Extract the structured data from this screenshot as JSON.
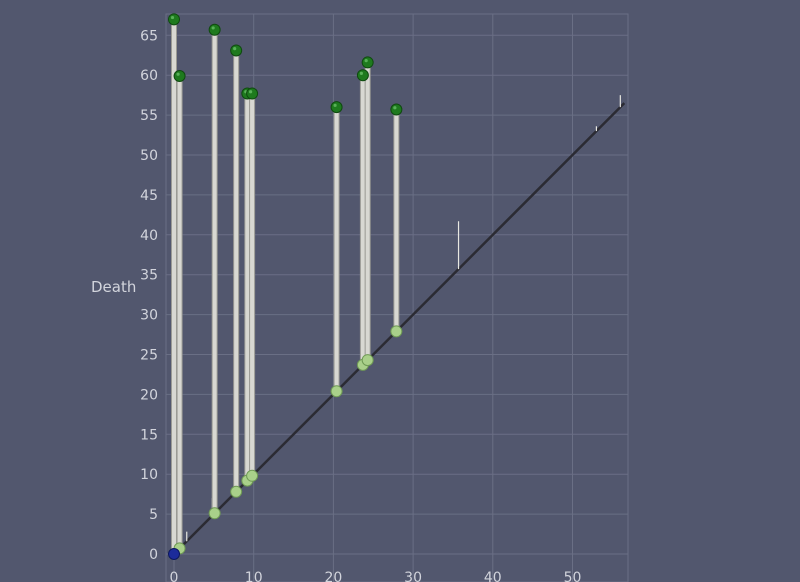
{
  "chart_data": {
    "type": "scatter",
    "title": "",
    "xlabel": "",
    "ylabel": "Death",
    "xlim": [
      0,
      57
    ],
    "ylim": [
      0,
      69
    ],
    "x_ticks": [
      0,
      10,
      20,
      30,
      40,
      50
    ],
    "y_ticks": [
      0,
      5,
      10,
      15,
      20,
      25,
      30,
      35,
      40,
      45,
      50,
      55,
      60,
      65
    ],
    "grid": true,
    "diagonal": true,
    "pairs": [
      {
        "birth": 0.0,
        "death": 67.0
      },
      {
        "birth": 0.7,
        "death": 59.9
      },
      {
        "birth": 5.1,
        "death": 65.7
      },
      {
        "birth": 7.8,
        "death": 63.1
      },
      {
        "birth": 9.2,
        "death": 57.7
      },
      {
        "birth": 9.8,
        "death": 57.7
      },
      {
        "birth": 20.4,
        "death": 56.0
      },
      {
        "birth": 23.7,
        "death": 60.0
      },
      {
        "birth": 24.3,
        "death": 61.6
      },
      {
        "birth": 27.9,
        "death": 55.7
      }
    ],
    "minor_pairs": [
      {
        "birth": 0.3,
        "death": 2.3
      },
      {
        "birth": 1.6,
        "death": 2.8
      },
      {
        "birth": 4.8,
        "death": 7.0
      },
      {
        "birth": 35.7,
        "death": 41.7
      },
      {
        "birth": 53.0,
        "death": 53.6
      },
      {
        "birth": 56.0,
        "death": 57.5
      }
    ],
    "origin_point": {
      "birth": 0,
      "death": 0
    },
    "colors": {
      "background": "#52576e",
      "grid": "#6a6f85",
      "axis_text": "#d2d4dc",
      "diagonal": "#2b2b33",
      "bar": "#d8d8d2",
      "death_point": "#1e7a1e",
      "birth_point": "#a9d08a",
      "origin_point": "#1c2b9a"
    }
  }
}
